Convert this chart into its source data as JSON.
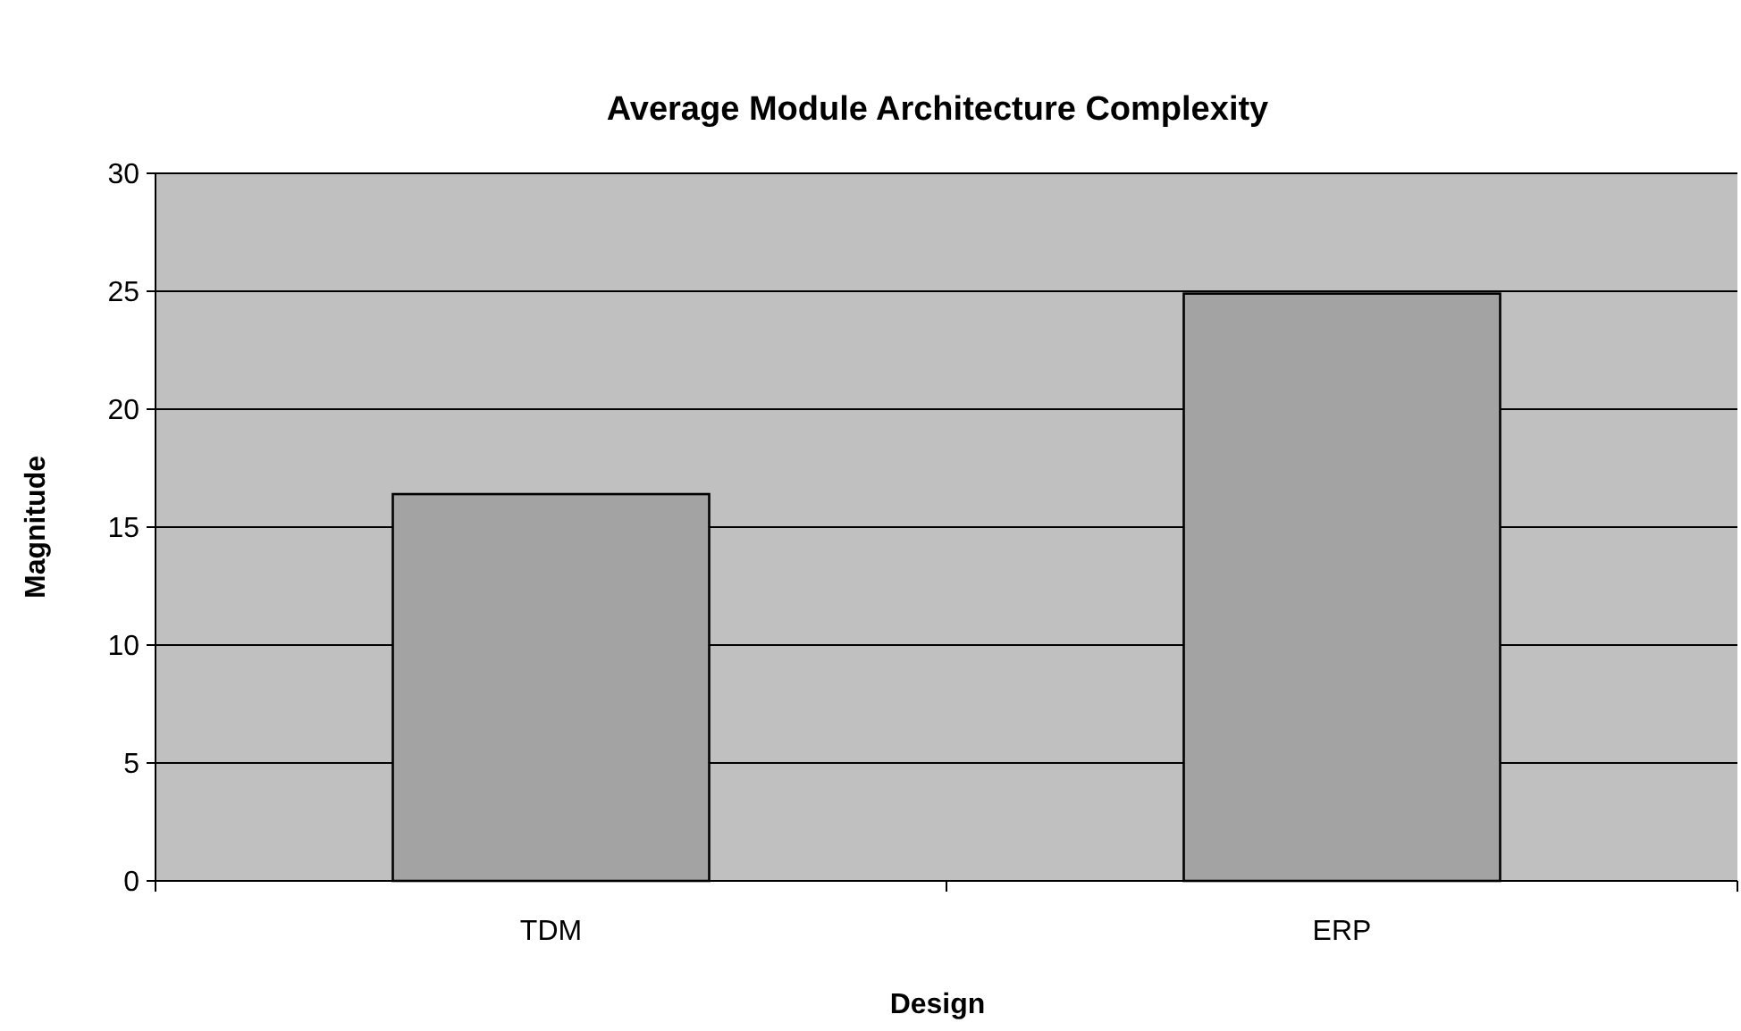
{
  "chart_data": {
    "type": "bar",
    "title": "Average Module Architecture Complexity",
    "xlabel": "Design",
    "ylabel": "Magnitude",
    "categories": [
      "TDM",
      "ERP"
    ],
    "values": [
      16.4,
      24.9
    ],
    "color": "#a3a3a3",
    "ylim": [
      0,
      30
    ],
    "yticks": [
      0,
      5,
      10,
      15,
      20,
      25,
      30
    ],
    "grid": "y"
  }
}
